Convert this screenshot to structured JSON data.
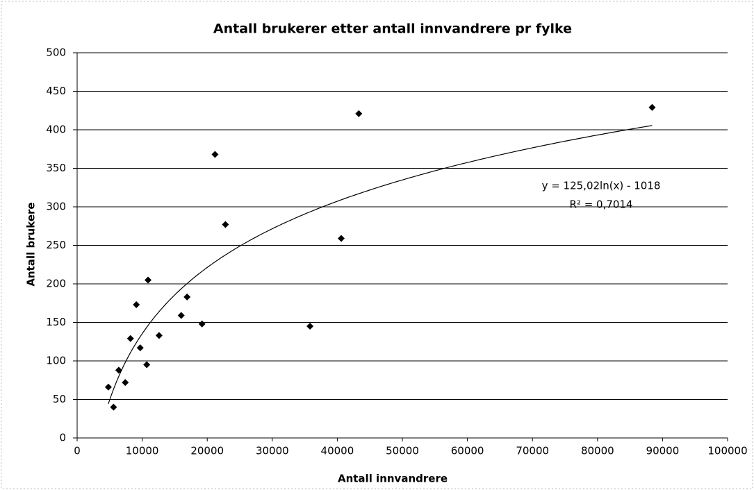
{
  "chart_data": {
    "type": "scatter",
    "title": "Antall brukerer etter antall innvandrere  pr fylke",
    "x_label": "Antall innvandrere",
    "y_label": "Antall brukere",
    "annotations": [
      "y = 125,02ln(x) - 1018",
      "R² = 0,7014"
    ],
    "color": "#000000",
    "grid": true,
    "trendline": "log",
    "x": [
      4800,
      5600,
      6400,
      7400,
      8200,
      9100,
      9700,
      10700,
      10900,
      12600,
      16000,
      16900,
      19200,
      21200,
      22800,
      35800,
      40600,
      43300,
      88400
    ],
    "values": [
      66,
      40,
      88,
      72,
      129,
      173,
      117,
      95,
      205,
      133,
      159,
      183,
      148,
      368,
      277,
      145,
      259,
      421,
      429
    ],
    "xlim": [
      0,
      100000
    ],
    "xticks": [
      0,
      10000,
      20000,
      30000,
      40000,
      50000,
      60000,
      70000,
      80000,
      90000,
      100000
    ],
    "ylim": [
      0,
      500
    ],
    "yticks": [
      0,
      50,
      100,
      150,
      200,
      250,
      300,
      350,
      400,
      450,
      500
    ]
  }
}
